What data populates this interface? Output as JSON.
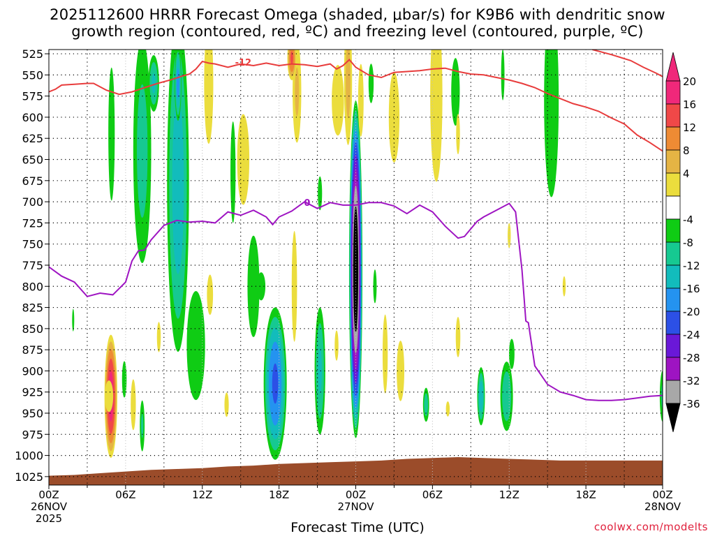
{
  "title_line1": "2025112600 HRRR Forecast Omega (shaded, μbar/s) for K9B6 with dendritic snow",
  "title_line2": "growth region (contoured, red, ºC) and freezing level (contoured, purple, ºC)",
  "x_title": "Forecast Time (UTC)",
  "credit": "coolwx.com/modelts",
  "chart_data": {
    "type": "heatmap",
    "xlabel": "Forecast Time (UTC)",
    "ylabel": "",
    "y_scale": "pressure (hPa), inverted",
    "ylim": [
      1035,
      520
    ],
    "xlim": [
      0,
      48
    ],
    "y_ticks": [
      525,
      550,
      575,
      600,
      625,
      650,
      675,
      700,
      725,
      750,
      775,
      800,
      825,
      850,
      875,
      900,
      925,
      950,
      975,
      1000,
      1025
    ],
    "x_ticks": [
      {
        "h": 0,
        "l1": "00Z",
        "l2": "26NOV",
        "l3": "2025"
      },
      {
        "h": 6,
        "l1": "06Z",
        "l2": "",
        "l3": ""
      },
      {
        "h": 12,
        "l1": "12Z",
        "l2": "",
        "l3": ""
      },
      {
        "h": 18,
        "l1": "18Z",
        "l2": "",
        "l3": ""
      },
      {
        "h": 24,
        "l1": "00Z",
        "l2": "27NOV",
        "l3": ""
      },
      {
        "h": 30,
        "l1": "06Z",
        "l2": "",
        "l3": ""
      },
      {
        "h": 36,
        "l1": "12Z",
        "l2": "",
        "l3": ""
      },
      {
        "h": 42,
        "l1": "18Z",
        "l2": "",
        "l3": ""
      },
      {
        "h": 48,
        "l1": "00Z",
        "l2": "28NOV",
        "l3": ""
      }
    ],
    "grid": true,
    "colorbar": {
      "labels": [
        "20",
        "16",
        "12",
        "8",
        "4",
        "-4",
        "-8",
        "-12",
        "-16",
        "-20",
        "-24",
        "-28",
        "-32",
        "-36"
      ],
      "bins": [
        {
          "lo": 20,
          "hi": 24,
          "color": "#f0287a"
        },
        {
          "lo": 16,
          "hi": 20,
          "color": "#f04848"
        },
        {
          "lo": 12,
          "hi": 16,
          "color": "#ee8b34"
        },
        {
          "lo": 8,
          "hi": 12,
          "color": "#e5b444"
        },
        {
          "lo": 4,
          "hi": 8,
          "color": "#ebdd3d"
        },
        {
          "lo": -4,
          "hi": 4,
          "color": "#ffffff"
        },
        {
          "lo": -8,
          "hi": -4,
          "color": "#0fcc14"
        },
        {
          "lo": -12,
          "hi": -8,
          "color": "#16c991"
        },
        {
          "lo": -16,
          "hi": -12,
          "color": "#12bcbc"
        },
        {
          "lo": -20,
          "hi": -16,
          "color": "#2493f0"
        },
        {
          "lo": -24,
          "hi": -20,
          "color": "#2c50e6"
        },
        {
          "lo": -28,
          "hi": -24,
          "color": "#6a18d8"
        },
        {
          "lo": -32,
          "hi": -28,
          "color": "#9e14c2"
        },
        {
          "lo": -36,
          "hi": -32,
          "color": "#a8a8a8"
        }
      ],
      "under_color": "#000000",
      "over_color": "#f0287a"
    },
    "omega_features": [
      {
        "h": 4.85,
        "p": 930,
        "dh": 0.55,
        "dp": 80,
        "peak": 22
      },
      {
        "h": 4.7,
        "p": 930,
        "dh": 0.5,
        "dp": 28,
        "peak": 6
      },
      {
        "h": 5.9,
        "p": 910,
        "dh": 0.25,
        "dp": 30,
        "peak": -7
      },
      {
        "h": 6.6,
        "p": 940,
        "dh": 0.3,
        "dp": 45,
        "peak": 6
      },
      {
        "h": 7.3,
        "p": 965,
        "dh": 0.25,
        "dp": 40,
        "peak": -8
      },
      {
        "h": 8.6,
        "p": 860,
        "dh": 0.25,
        "dp": 30,
        "peak": 5
      },
      {
        "h": 1.9,
        "p": 840,
        "dh": 0.1,
        "dp": 20,
        "peak": -6
      },
      {
        "h": 4.9,
        "p": 620,
        "dh": 0.35,
        "dp": 110,
        "peak": -7
      },
      {
        "h": 7.3,
        "p": 640,
        "dh": 0.9,
        "dp": 170,
        "peak": -9
      },
      {
        "h": 8.2,
        "p": 560,
        "dh": 0.5,
        "dp": 40,
        "peak": -12
      },
      {
        "h": 10.1,
        "p": 680,
        "dh": 1.0,
        "dp": 230,
        "peak": -14
      },
      {
        "h": 10.1,
        "p": 560,
        "dh": 0.3,
        "dp": 50,
        "peak": -17
      },
      {
        "h": 11.5,
        "p": 870,
        "dh": 1.0,
        "dp": 90,
        "peak": -7
      },
      {
        "h": 12.5,
        "p": 560,
        "dh": 0.6,
        "dp": 120,
        "peak": 5
      },
      {
        "h": 12.6,
        "p": 810,
        "dh": 0.4,
        "dp": 40,
        "peak": 5
      },
      {
        "h": 13.9,
        "p": 940,
        "dh": 0.35,
        "dp": 30,
        "peak": 4
      },
      {
        "h": 14.4,
        "p": 665,
        "dh": 0.3,
        "dp": 90,
        "peak": -6
      },
      {
        "h": 15.2,
        "p": 650,
        "dh": 0.8,
        "dp": 90,
        "peak": 5
      },
      {
        "h": 16.0,
        "p": 800,
        "dh": 0.7,
        "dp": 90,
        "peak": -6
      },
      {
        "h": 16.6,
        "p": 800,
        "dh": 0.5,
        "dp": 25,
        "peak": -6
      },
      {
        "h": 17.7,
        "p": 915,
        "dh": 1.0,
        "dp": 100,
        "peak": -20
      },
      {
        "h": 19.2,
        "p": 800,
        "dh": 0.35,
        "dp": 110,
        "peak": 5
      },
      {
        "h": 19.4,
        "p": 570,
        "dh": 0.45,
        "dp": 80,
        "peak": 8
      },
      {
        "h": 19.0,
        "p": 530,
        "dh": 0.4,
        "dp": 30,
        "peak": 16
      },
      {
        "h": 21.2,
        "p": 690,
        "dh": 0.25,
        "dp": 30,
        "peak": -6
      },
      {
        "h": 21.2,
        "p": 900,
        "dh": 0.5,
        "dp": 90,
        "peak": -12
      },
      {
        "h": 22.5,
        "p": 870,
        "dh": 0.25,
        "dp": 30,
        "peak": 5
      },
      {
        "h": 22.6,
        "p": 580,
        "dh": 0.8,
        "dp": 70,
        "peak": 5
      },
      {
        "h": 24.0,
        "p": 780,
        "dh": 0.55,
        "dp": 210,
        "peak": -40
      },
      {
        "h": 23.4,
        "p": 555,
        "dh": 0.4,
        "dp": 100,
        "peak": 9
      },
      {
        "h": 24.4,
        "p": 580,
        "dh": 0.3,
        "dp": 60,
        "peak": 7
      },
      {
        "h": 25.2,
        "p": 560,
        "dh": 0.3,
        "dp": 35,
        "peak": -6
      },
      {
        "h": 25.5,
        "p": 800,
        "dh": 0.2,
        "dp": 30,
        "peak": -6
      },
      {
        "h": 26.3,
        "p": 880,
        "dh": 0.3,
        "dp": 70,
        "peak": 6
      },
      {
        "h": 27.0,
        "p": 600,
        "dh": 0.7,
        "dp": 90,
        "peak": 5
      },
      {
        "h": 27.5,
        "p": 900,
        "dh": 0.5,
        "dp": 60,
        "peak": 5
      },
      {
        "h": 29.5,
        "p": 940,
        "dh": 0.3,
        "dp": 25,
        "peak": -10
      },
      {
        "h": 30.3,
        "p": 575,
        "dh": 0.8,
        "dp": 170,
        "peak": 5
      },
      {
        "h": 31.2,
        "p": 945,
        "dh": 0.25,
        "dp": 15,
        "peak": 5
      },
      {
        "h": 31.8,
        "p": 570,
        "dh": 0.5,
        "dp": 60,
        "peak": -6
      },
      {
        "h": 32.0,
        "p": 860,
        "dh": 0.3,
        "dp": 40,
        "peak": 5
      },
      {
        "h": 32.0,
        "p": 620,
        "dh": 0.25,
        "dp": 40,
        "peak": 5
      },
      {
        "h": 33.8,
        "p": 930,
        "dh": 0.35,
        "dp": 40,
        "peak": -14
      },
      {
        "h": 35.8,
        "p": 930,
        "dh": 0.6,
        "dp": 50,
        "peak": -11
      },
      {
        "h": 36.2,
        "p": 880,
        "dh": 0.3,
        "dp": 25,
        "peak": -7
      },
      {
        "h": 35.5,
        "p": 550,
        "dh": 0.2,
        "dp": 45,
        "peak": -6
      },
      {
        "h": 36.0,
        "p": 740,
        "dh": 0.2,
        "dp": 25,
        "peak": 5
      },
      {
        "h": 39.3,
        "p": 580,
        "dh": 0.8,
        "dp": 160,
        "peak": -7
      },
      {
        "h": 40.3,
        "p": 800,
        "dh": 0.2,
        "dp": 20,
        "peak": 5
      },
      {
        "h": 48.0,
        "p": 930,
        "dh": 0.3,
        "dp": 40,
        "peak": -8
      }
    ],
    "series": [
      {
        "name": "-12",
        "color": "#e83c3c",
        "label_at": [
          15.2,
          539
        ],
        "x": [
          0,
          0.5,
          1,
          2,
          3,
          3.5,
          4.5,
          5.5,
          6.5,
          7.5,
          8.5,
          9.5,
          10.5,
          11,
          11.5,
          12,
          12.5,
          13,
          14,
          15,
          16,
          17,
          18,
          19,
          20,
          21,
          22,
          22.5,
          23,
          23.5,
          24,
          25,
          26,
          27,
          28,
          29,
          30,
          31,
          32,
          33,
          34,
          35,
          36,
          37,
          38,
          39,
          40,
          41,
          42,
          43,
          44,
          45,
          46,
          47,
          48
        ],
        "y": [
          570,
          567,
          562,
          561,
          560,
          560,
          568,
          573,
          570,
          565,
          560,
          556,
          551,
          549,
          543,
          534,
          536,
          537,
          541,
          537,
          539,
          536,
          539,
          537,
          538,
          540,
          537,
          543,
          539,
          532,
          541,
          550,
          553,
          547,
          546,
          545,
          543,
          542,
          546,
          549,
          550,
          553,
          556,
          560,
          565,
          572,
          578,
          584,
          588,
          593,
          601,
          608,
          621,
          630,
          640
        ]
      },
      {
        "name": "-12",
        "color": "#e83c3c",
        "label_at": null,
        "x": [
          42.5,
          44,
          45.5,
          46.5,
          47.5,
          48
        ],
        "y": [
          520,
          526,
          533,
          541,
          548,
          552
        ]
      },
      {
        "name": "0",
        "color": "#9e14c2",
        "label_at": [
          20.2,
          705
        ],
        "x": [
          0,
          1,
          2,
          3,
          4,
          5,
          6,
          6.5,
          7,
          7.5,
          8,
          9,
          10,
          11,
          12,
          13,
          14,
          15,
          16,
          17,
          17.5,
          18,
          19,
          20,
          21,
          22,
          23,
          24,
          25,
          26,
          27,
          28,
          29,
          30,
          31,
          32,
          32.5,
          33,
          33.5,
          34,
          35,
          36,
          36.5,
          37,
          37.3,
          37.5,
          38,
          39,
          40,
          41,
          42,
          43,
          44,
          45,
          46,
          47,
          48
        ],
        "y": [
          777,
          788,
          795,
          812,
          808,
          810,
          795,
          770,
          758,
          757,
          745,
          728,
          722,
          724,
          723,
          725,
          712,
          716,
          710,
          718,
          727,
          718,
          711,
          700,
          708,
          701,
          704,
          704,
          701,
          701,
          705,
          714,
          704,
          712,
          729,
          743,
          741,
          732,
          723,
          718,
          710,
          702,
          712,
          781,
          841,
          843,
          894,
          916,
          925,
          929,
          934,
          935,
          935,
          934,
          932,
          930,
          929
        ]
      }
    ],
    "terrain": {
      "color": "#9b4c2a",
      "x": [
        0,
        2,
        4,
        6,
        8,
        10,
        12,
        14,
        16,
        18,
        20,
        22,
        24,
        26,
        28,
        30,
        32,
        34,
        36,
        38,
        40,
        42,
        44,
        46,
        48
      ],
      "y": [
        1024,
        1023,
        1021,
        1019,
        1017,
        1016,
        1015,
        1013,
        1012,
        1010,
        1009,
        1008,
        1007,
        1006,
        1004,
        1003,
        1002,
        1003,
        1004,
        1005,
        1006,
        1006,
        1006,
        1006,
        1006
      ]
    }
  }
}
